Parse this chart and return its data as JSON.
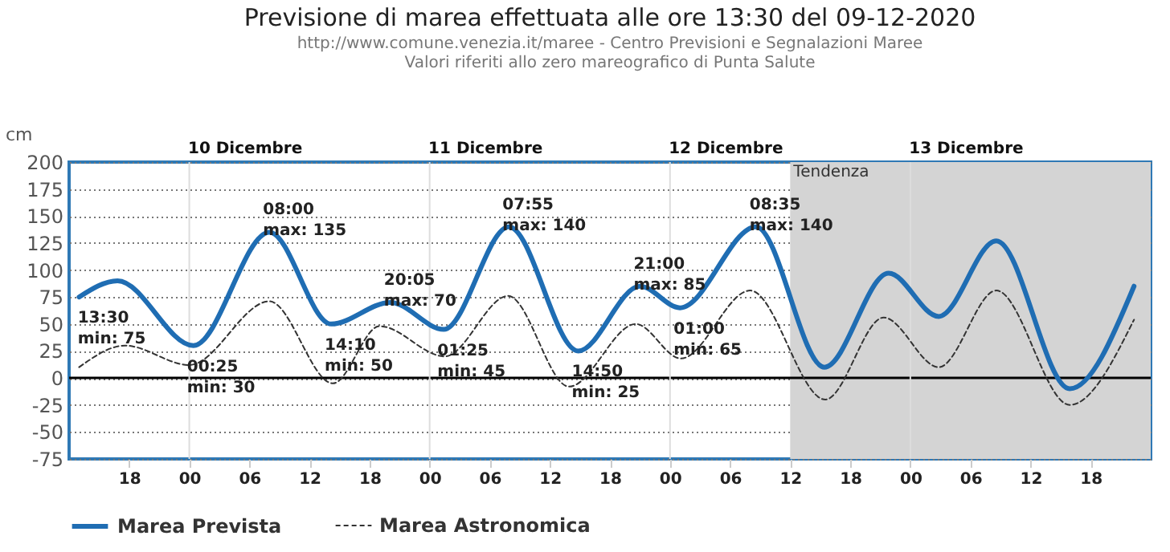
{
  "chart_data": {
    "type": "line",
    "title": "Previsione di marea effettuata alle ore 13:30 del 09-12-2020",
    "subtitle": "http://www.comune.venezia.it/maree - Centro Previsioni e Segnalazioni Maree\nValori riferiti allo zero mareografico di Punta Salute",
    "ylabel": "cm",
    "xlim": [
      "2020-12-09T12:00",
      "2020-12-14T00:00"
    ],
    "xticks": [
      {
        "value": "2020-12-09T18:00",
        "label": "18"
      },
      {
        "value": "2020-12-10T00:00",
        "label": "00"
      },
      {
        "value": "2020-12-10T06:00",
        "label": "06"
      },
      {
        "value": "2020-12-10T12:00",
        "label": "12"
      },
      {
        "value": "2020-12-10T18:00",
        "label": "18"
      },
      {
        "value": "2020-12-11T00:00",
        "label": "00"
      },
      {
        "value": "2020-12-11T06:00",
        "label": "06"
      },
      {
        "value": "2020-12-11T12:00",
        "label": "12"
      },
      {
        "value": "2020-12-11T18:00",
        "label": "18"
      },
      {
        "value": "2020-12-12T00:00",
        "label": "00"
      },
      {
        "value": "2020-12-12T06:00",
        "label": "06"
      },
      {
        "value": "2020-12-12T12:00",
        "label": "12"
      },
      {
        "value": "2020-12-12T18:00",
        "label": "18"
      },
      {
        "value": "2020-12-13T00:00",
        "label": "00"
      },
      {
        "value": "2020-12-13T06:00",
        "label": "06"
      },
      {
        "value": "2020-12-13T12:00",
        "label": "12"
      },
      {
        "value": "2020-12-13T18:00",
        "label": "18"
      }
    ],
    "x2lim": [
      "2020-12-09T12:00",
      "2020-12-14T00:00"
    ],
    "x2ticks": [
      {
        "value": "2020-12-10T05:30",
        "label": "10 Dicembre"
      },
      {
        "value": "2020-12-11T05:30",
        "label": "11 Dicembre"
      },
      {
        "value": "2020-12-12T05:30",
        "label": "12 Dicembre"
      },
      {
        "value": "2020-12-13T05:30",
        "label": "13 Dicembre"
      }
    ],
    "ylim": [
      -75,
      200
    ],
    "yticks": [
      -75,
      -50,
      -25,
      0,
      25,
      50,
      75,
      100,
      125,
      150,
      175,
      200
    ],
    "grid": "y",
    "legend": "bottom",
    "marker": "none",
    "series": [
      {
        "name": "Marea Prevista",
        "color": "#1f6db3",
        "line_style": "solid",
        "x": [
          "2020-12-09T13:00",
          "2020-12-09T16:50",
          "2020-12-10T00:25",
          "2020-12-10T08:00",
          "2020-12-10T14:10",
          "2020-12-10T20:05",
          "2020-12-11T01:25",
          "2020-12-11T07:55",
          "2020-12-11T14:50",
          "2020-12-11T21:00",
          "2020-12-12T01:00",
          "2020-12-12T08:35",
          "2020-12-12T15:25",
          "2020-12-12T21:50",
          "2020-12-13T02:50",
          "2020-12-13T08:35",
          "2020-12-13T15:55",
          "2020-12-13T22:20"
        ],
        "values": [
          75,
          90,
          30,
          135,
          50,
          70,
          45,
          140,
          25,
          85,
          65,
          140,
          10,
          97,
          57,
          127,
          -10,
          85
        ]
      },
      {
        "name": "Marea Astronomica",
        "color": "#333333",
        "line_style": "dashed",
        "x": [
          "2020-12-09T13:00",
          "2020-12-09T17:35",
          "2020-12-10T00:00",
          "2020-12-10T08:00",
          "2020-12-10T14:20",
          "2020-12-10T19:00",
          "2020-12-11T01:30",
          "2020-12-11T07:50",
          "2020-12-11T13:55",
          "2020-12-11T20:35",
          "2020-12-12T01:05",
          "2020-12-12T08:00",
          "2020-12-12T15:30",
          "2020-12-12T21:20",
          "2020-12-13T02:50",
          "2020-12-13T08:35",
          "2020-12-13T15:55",
          "2020-12-13T22:20"
        ],
        "values": [
          10,
          30,
          12,
          71,
          -5,
          48,
          20,
          76,
          -8,
          50,
          18,
          81,
          -20,
          56,
          10,
          81,
          -25,
          54
        ]
      }
    ],
    "bands": [
      {
        "axis": "x",
        "from": "2020-12-12T12:00",
        "to": "2020-12-14T00:00",
        "label": "Tendenza",
        "color": "#d4d4d4"
      }
    ],
    "ref_lines": [
      {
        "axis": "y",
        "value": 0,
        "color": "#000000"
      },
      {
        "axis": "x",
        "value": "2020-12-10T00:00",
        "color": "#dddddd"
      },
      {
        "axis": "x",
        "value": "2020-12-11T00:00",
        "color": "#dddddd"
      },
      {
        "axis": "x",
        "value": "2020-12-12T00:00",
        "color": "#dddddd"
      },
      {
        "axis": "x",
        "value": "2020-12-13T00:00",
        "color": "#dddddd"
      }
    ],
    "annotations": [
      {
        "text": "13:30\nmin: 75",
        "x": "2020-12-09T13:30",
        "y": 75
      },
      {
        "text": "00:25\nmin: 30",
        "x": "2020-12-10T00:25",
        "y": 30
      },
      {
        "text": "08:00\nmax: 135",
        "x": "2020-12-10T08:00",
        "y": 135
      },
      {
        "text": "14:10\nmin: 50",
        "x": "2020-12-10T14:10",
        "y": 50
      },
      {
        "text": "20:05\nmax: 70",
        "x": "2020-12-10T20:05",
        "y": 70
      },
      {
        "text": "01:25\nmin: 45",
        "x": "2020-12-11T01:25",
        "y": 45
      },
      {
        "text": "07:55\nmax: 140",
        "x": "2020-12-11T07:55",
        "y": 140
      },
      {
        "text": "14:50\nmin: 25",
        "x": "2020-12-11T14:50",
        "y": 25
      },
      {
        "text": "21:00\nmax: 85",
        "x": "2020-12-11T21:00",
        "y": 85
      },
      {
        "text": "01:00\nmin: 65",
        "x": "2020-12-12T01:00",
        "y": 65
      },
      {
        "text": "08:35\nmax: 140",
        "x": "2020-12-12T08:35",
        "y": 140
      }
    ]
  }
}
